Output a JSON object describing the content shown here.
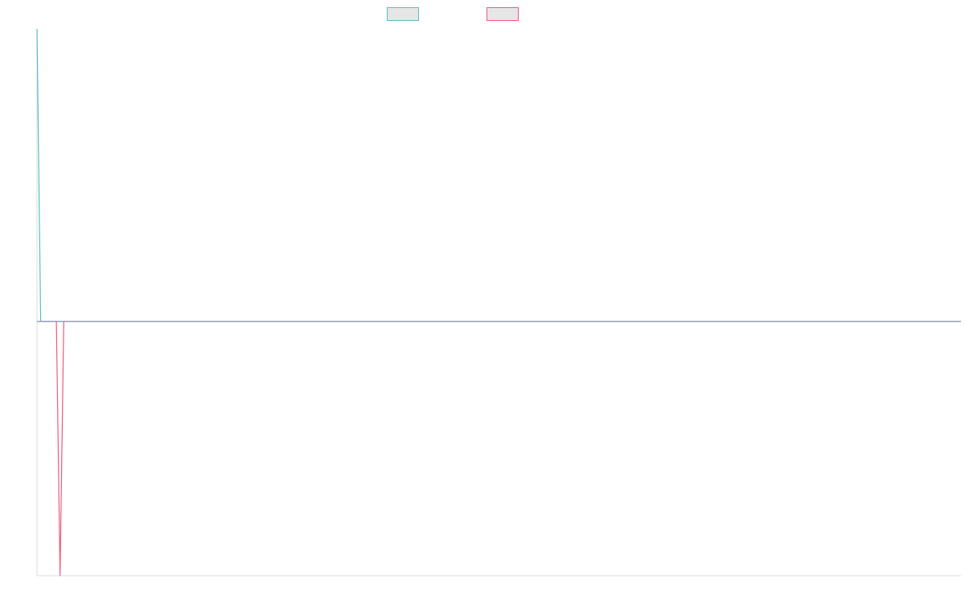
{
  "chart_data": {
    "type": "line",
    "grid": false,
    "legend_position": "top-center",
    "x_range": [
      0,
      1000
    ],
    "y_range": [
      -1,
      1.15
    ],
    "series": [
      {
        "color": "#5bbcc7",
        "legend_fill": "#e6e6e6",
        "points": [
          [
            0,
            1.15
          ],
          [
            4,
            0
          ],
          [
            22,
            0
          ],
          [
            24,
            0
          ],
          [
            28,
            0
          ],
          [
            1000,
            0
          ]
        ]
      },
      {
        "color": "#f05a7e",
        "legend_fill": "#e6e6e6",
        "points": [
          [
            0,
            0
          ],
          [
            21,
            0
          ],
          [
            25,
            -1
          ],
          [
            29,
            0
          ],
          [
            1000,
            0
          ]
        ]
      }
    ],
    "zero_line_color": "#8aa0b8",
    "axis_color": "#dddddd"
  }
}
